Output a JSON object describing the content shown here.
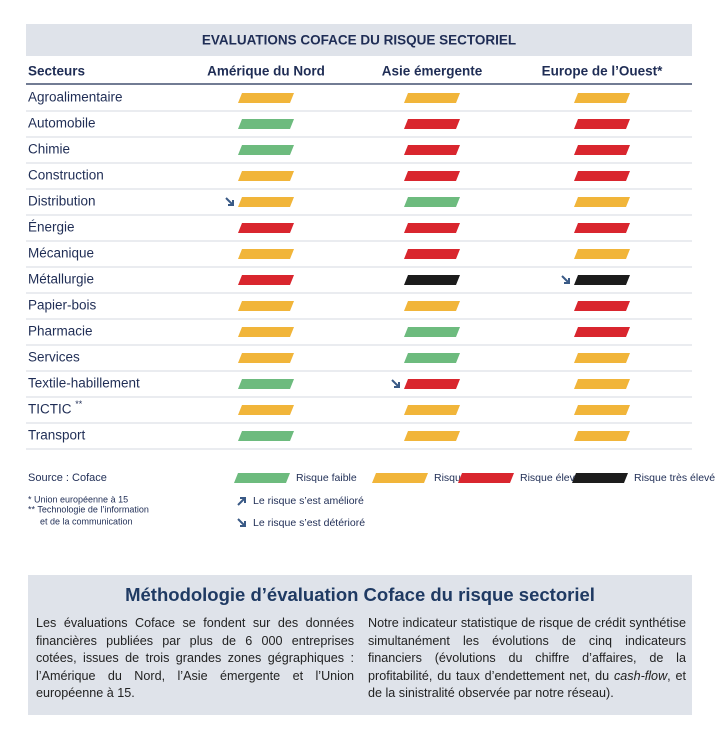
{
  "header": {
    "title": "EVALUATIONS COFACE DU RISQUE SECTORIEL"
  },
  "table": {
    "columns": [
      "Secteurs",
      "Amérique du Nord",
      "Asie émergente",
      "Europe de l’Ouest*"
    ],
    "sectors": [
      {
        "label": "Agroalimentaire",
        "levels": [
          1,
          1,
          1
        ]
      },
      {
        "label": "Automobile",
        "levels": [
          0,
          2,
          2
        ]
      },
      {
        "label": "Chimie",
        "levels": [
          0,
          2,
          2
        ]
      },
      {
        "label": "Construction",
        "levels": [
          1,
          2,
          2
        ]
      },
      {
        "label": "Distribution",
        "levels": [
          1,
          0,
          1
        ]
      },
      {
        "label": "Énergie",
        "levels": [
          2,
          2,
          2
        ]
      },
      {
        "label": "Mécanique",
        "levels": [
          1,
          2,
          1
        ]
      },
      {
        "label": "Métallurgie",
        "levels": [
          2,
          3,
          3
        ]
      },
      {
        "label": "Papier-bois",
        "levels": [
          1,
          1,
          2
        ]
      },
      {
        "label": "Pharmacie",
        "levels": [
          1,
          0,
          2
        ]
      },
      {
        "label": "Services",
        "levels": [
          1,
          0,
          1
        ]
      },
      {
        "label": "Textile-habillement",
        "levels": [
          0,
          2,
          1
        ]
      },
      {
        "label": "TIC",
        "note": "**",
        "levels": [
          1,
          1,
          1
        ]
      },
      {
        "label": "Transport",
        "levels": [
          0,
          1,
          1
        ]
      }
    ],
    "arrows": [
      {
        "row": 4,
        "column": 0,
        "trend": 1
      },
      {
        "row": 7,
        "column": 2,
        "trend": 1
      },
      {
        "row": 11,
        "column": 1,
        "trend": 1
      }
    ]
  },
  "legend": {
    "levels": [
      {
        "label": "Risque faible",
        "color": "#6dbb7e"
      },
      {
        "label": "Risque moyen",
        "color": "#f1b53a"
      },
      {
        "label": "Risque élevé",
        "color": "#d9262e"
      },
      {
        "label": "Risque très élevé",
        "color": "#1c1c1c"
      }
    ],
    "trends": [
      "Le risque s’est amélioré",
      "Le risque s’est détérioré"
    ]
  },
  "footer": {
    "source": "Source : Coface",
    "notes": [
      "* Union européenne à 15",
      "** Technologie de l’information",
      "et de la communication"
    ]
  },
  "methodology": {
    "title": "Méthodologie d’évaluation Coface du risque sectoriel",
    "left": "Les évaluations Coface se fondent sur des données financières publiées par plus de 6 000 entreprises cotées, issues de trois grandes zones gégraphiques : l’Amérique du Nord, l’Asie émergente et l’Union européenne à 15.",
    "right": [
      "Notre indicateur statistique de risque de crédit synthétise simultanément les évolutions de cinq indicateurs financiers (évolutions du chiffre d’affaires, de la profitabilité, du taux d’endettement net, du ",
      "cash-flow",
      ", et de la sinistralité observée par notre réseau)."
    ]
  }
}
